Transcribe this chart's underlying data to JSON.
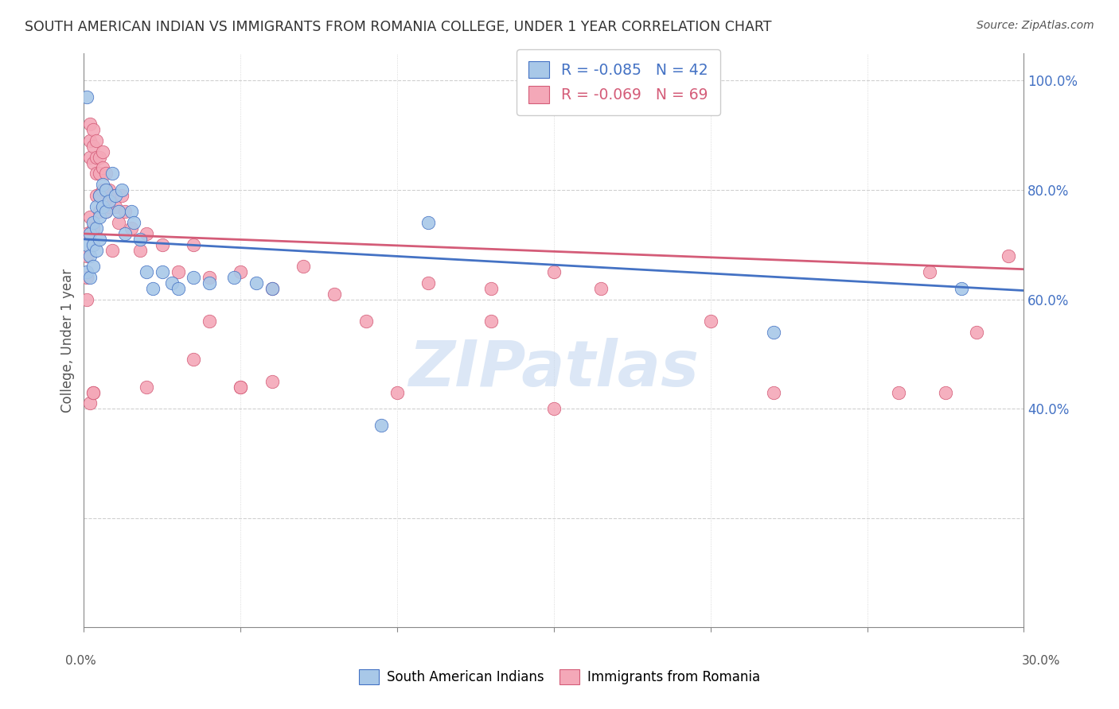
{
  "title": "SOUTH AMERICAN INDIAN VS IMMIGRANTS FROM ROMANIA COLLEGE, UNDER 1 YEAR CORRELATION CHART",
  "source": "Source: ZipAtlas.com",
  "ylabel": "College, Under 1 year",
  "legend1_label": "R = -0.085   N = 42",
  "legend2_label": "R = -0.069   N = 69",
  "legend1_r": "R = -0.085",
  "legend1_n": "N = 42",
  "legend2_r": "R = -0.069",
  "legend2_n": "N = 69",
  "scatter1_color": "#a8c8e8",
  "scatter2_color": "#f4a8b8",
  "edge1_color": "#4472c4",
  "edge2_color": "#d45c78",
  "trendline1_color": "#4472c4",
  "trendline2_color": "#d45c78",
  "watermark_color": "#c5d8f0",
  "blue_points_x": [
    0.001,
    0.001,
    0.001,
    0.002,
    0.002,
    0.002,
    0.003,
    0.003,
    0.003,
    0.004,
    0.004,
    0.004,
    0.005,
    0.005,
    0.005,
    0.006,
    0.006,
    0.007,
    0.007,
    0.008,
    0.009,
    0.01,
    0.011,
    0.012,
    0.013,
    0.015,
    0.016,
    0.018,
    0.02,
    0.022,
    0.025,
    0.028,
    0.03,
    0.035,
    0.04,
    0.048,
    0.055,
    0.06,
    0.11,
    0.22,
    0.28,
    0.095
  ],
  "blue_points_y": [
    0.97,
    0.7,
    0.65,
    0.72,
    0.68,
    0.64,
    0.74,
    0.7,
    0.66,
    0.77,
    0.73,
    0.69,
    0.79,
    0.75,
    0.71,
    0.81,
    0.77,
    0.8,
    0.76,
    0.78,
    0.83,
    0.79,
    0.76,
    0.8,
    0.72,
    0.76,
    0.74,
    0.71,
    0.65,
    0.62,
    0.65,
    0.63,
    0.62,
    0.64,
    0.63,
    0.64,
    0.63,
    0.62,
    0.74,
    0.54,
    0.62,
    0.37
  ],
  "pink_points_x": [
    0.001,
    0.001,
    0.001,
    0.001,
    0.002,
    0.002,
    0.002,
    0.002,
    0.003,
    0.003,
    0.003,
    0.003,
    0.004,
    0.004,
    0.004,
    0.004,
    0.005,
    0.005,
    0.005,
    0.005,
    0.006,
    0.006,
    0.006,
    0.007,
    0.007,
    0.007,
    0.008,
    0.008,
    0.009,
    0.009,
    0.01,
    0.011,
    0.012,
    0.013,
    0.015,
    0.018,
    0.02,
    0.025,
    0.03,
    0.035,
    0.04,
    0.05,
    0.06,
    0.07,
    0.08,
    0.09,
    0.1,
    0.11,
    0.13,
    0.15,
    0.165,
    0.2,
    0.22,
    0.26,
    0.275,
    0.285,
    0.295,
    0.05,
    0.13,
    0.05,
    0.04,
    0.002,
    0.003,
    0.003,
    0.02,
    0.035,
    0.06,
    0.15,
    0.27
  ],
  "pink_points_y": [
    0.72,
    0.68,
    0.64,
    0.6,
    0.92,
    0.89,
    0.86,
    0.75,
    0.91,
    0.88,
    0.85,
    0.73,
    0.89,
    0.86,
    0.83,
    0.79,
    0.86,
    0.83,
    0.79,
    0.76,
    0.87,
    0.84,
    0.8,
    0.83,
    0.8,
    0.76,
    0.8,
    0.77,
    0.79,
    0.69,
    0.77,
    0.74,
    0.79,
    0.76,
    0.73,
    0.69,
    0.72,
    0.7,
    0.65,
    0.7,
    0.64,
    0.65,
    0.62,
    0.66,
    0.61,
    0.56,
    0.43,
    0.63,
    0.62,
    0.65,
    0.62,
    0.56,
    0.43,
    0.43,
    0.43,
    0.54,
    0.68,
    0.44,
    0.56,
    0.44,
    0.56,
    0.41,
    0.43,
    0.43,
    0.44,
    0.49,
    0.45,
    0.4,
    0.65
  ],
  "trendline1_x": [
    0.0,
    0.3
  ],
  "trendline1_y": [
    0.71,
    0.616
  ],
  "trendline2_x": [
    0.0,
    0.3
  ],
  "trendline2_y": [
    0.72,
    0.655
  ],
  "x_min": 0.0,
  "x_max": 0.3,
  "y_min": 0.0,
  "y_max": 1.05,
  "right_yticks": [
    0.4,
    0.6,
    0.8,
    1.0
  ],
  "right_yticklabels": [
    "40.0%",
    "60.0%",
    "80.0%",
    "100.0%"
  ],
  "grid_yticks": [
    0.2,
    0.4,
    0.6,
    0.8,
    1.0
  ],
  "background_color": "#ffffff",
  "grid_color": "#d0d0d0",
  "axis_color": "#888888",
  "text_color": "#555555",
  "blue_label_color": "#4472c4",
  "pink_label_color": "#d45c78"
}
